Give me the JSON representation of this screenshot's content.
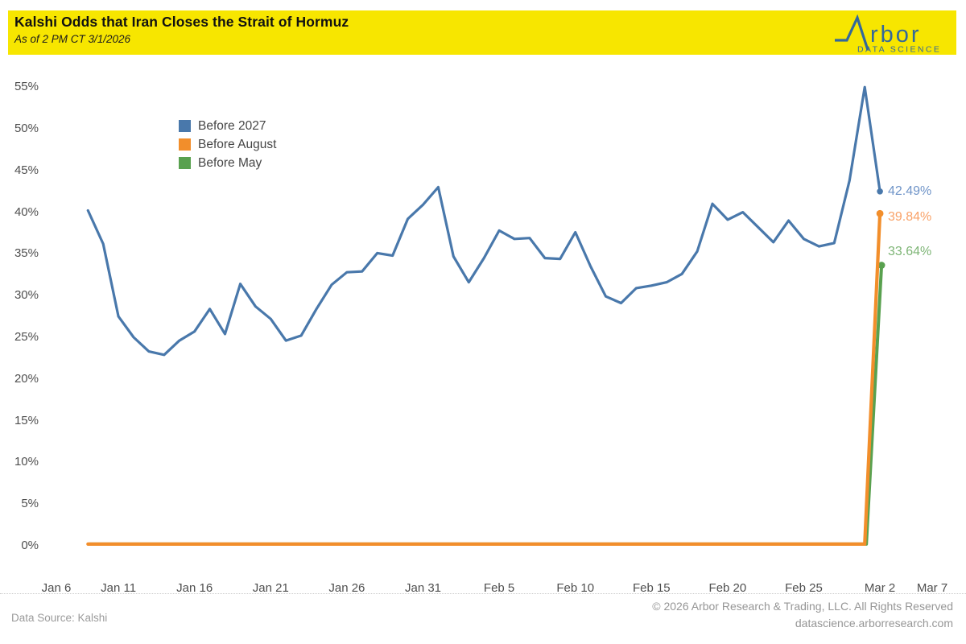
{
  "header": {
    "logo": {
      "wordmark_suffix": "rbor",
      "tagline": "DATA SCIENCE",
      "color": "#33689B"
    }
  },
  "chart_data": {
    "type": "line",
    "title": "Kalshi Odds that Iran Closes the Strait of Hormuz",
    "subtitle": "As of 2 PM CT 3/1/2026",
    "xlabel": "",
    "ylabel": "",
    "ylim": [
      0,
      57.5
    ],
    "x_domain": [
      "Jan 6",
      "Mar 7"
    ],
    "grid": false,
    "legend_position": "upper-left-inside",
    "x_ticks": [
      "Jan 6",
      "Jan 11",
      "Jan 16",
      "Jan 21",
      "Jan 26",
      "Jan 31",
      "Feb 5",
      "Feb 10",
      "Feb 15",
      "Feb 20",
      "Feb 25",
      "Mar 2",
      "Mar 7"
    ],
    "y_ticks": [
      "0%",
      "5%",
      "10%",
      "15%",
      "20%",
      "25%",
      "30%",
      "35%",
      "40%",
      "45%",
      "50%",
      "55%"
    ],
    "x": [
      "Jan 9",
      "Jan 10",
      "Jan 11",
      "Jan 12",
      "Jan 13",
      "Jan 14",
      "Jan 15",
      "Jan 16",
      "Jan 17",
      "Jan 18",
      "Jan 19",
      "Jan 20",
      "Jan 21",
      "Jan 22",
      "Jan 23",
      "Jan 24",
      "Jan 25",
      "Jan 26",
      "Jan 27",
      "Jan 28",
      "Jan 29",
      "Jan 30",
      "Jan 31",
      "Feb 1",
      "Feb 2",
      "Feb 3",
      "Feb 4",
      "Feb 5",
      "Feb 6",
      "Feb 7",
      "Feb 8",
      "Feb 9",
      "Feb 10",
      "Feb 11",
      "Feb 12",
      "Feb 13",
      "Feb 14",
      "Feb 15",
      "Feb 16",
      "Feb 17",
      "Feb 18",
      "Feb 19",
      "Feb 20",
      "Feb 21",
      "Feb 22",
      "Feb 23",
      "Feb 24",
      "Feb 25",
      "Feb 26",
      "Feb 27",
      "Feb 28",
      "Mar 1",
      "Mar 2"
    ],
    "series": [
      {
        "name": "Before 2027",
        "color": "#4978AB",
        "label_color": "#6F94C8",
        "end_label": "42.49%",
        "values": [
          40.2,
          36.2,
          27.5,
          25.0,
          23.3,
          22.9,
          24.6,
          25.7,
          28.4,
          25.4,
          31.4,
          28.7,
          27.2,
          24.6,
          25.2,
          28.4,
          31.3,
          32.8,
          32.9,
          35.1,
          34.8,
          39.2,
          40.9,
          43.0,
          34.7,
          31.6,
          34.5,
          37.8,
          36.8,
          36.9,
          34.5,
          34.4,
          37.6,
          33.5,
          29.9,
          29.1,
          30.9,
          31.2,
          31.6,
          32.6,
          35.3,
          41.0,
          39.1,
          40.0,
          38.2,
          36.4,
          39.0,
          36.8,
          35.9,
          36.3,
          43.8,
          55.0,
          42.49
        ]
      },
      {
        "name": "Before August",
        "color": "#F28E2B",
        "label_color": "#F9A268",
        "end_label": "39.84%",
        "values": [
          0.2,
          0.2,
          0.2,
          0.2,
          0.2,
          0.2,
          0.2,
          0.2,
          0.2,
          0.2,
          0.2,
          0.2,
          0.2,
          0.2,
          0.2,
          0.2,
          0.2,
          0.2,
          0.2,
          0.2,
          0.2,
          0.2,
          0.2,
          0.2,
          0.2,
          0.2,
          0.2,
          0.2,
          0.2,
          0.2,
          0.2,
          0.2,
          0.2,
          0.2,
          0.2,
          0.2,
          0.2,
          0.2,
          0.2,
          0.2,
          0.2,
          0.2,
          0.2,
          0.2,
          0.2,
          0.2,
          0.2,
          0.2,
          0.2,
          0.2,
          0.2,
          0.2,
          39.84
        ]
      },
      {
        "name": "Before May",
        "color": "#59A14F",
        "label_color": "#7EB576",
        "end_label": "33.64%",
        "values": [
          0.2,
          0.2,
          0.2,
          0.2,
          0.2,
          0.2,
          0.2,
          0.2,
          0.2,
          0.2,
          0.2,
          0.2,
          0.2,
          0.2,
          0.2,
          0.2,
          0.2,
          0.2,
          0.2,
          0.2,
          0.2,
          0.2,
          0.2,
          0.2,
          0.2,
          0.2,
          0.2,
          0.2,
          0.2,
          0.2,
          0.2,
          0.2,
          0.2,
          0.2,
          0.2,
          0.2,
          0.2,
          0.2,
          0.2,
          0.2,
          0.2,
          0.2,
          0.2,
          0.2,
          0.2,
          0.2,
          0.2,
          0.2,
          0.2,
          0.2,
          0.2,
          0.2,
          33.64
        ]
      }
    ]
  },
  "footer": {
    "data_source": "Data Source: Kalshi",
    "copyright": "© 2026 Arbor Research & Trading, LLC. All Rights Reserved",
    "website": "datascience.arborresearch.com"
  }
}
